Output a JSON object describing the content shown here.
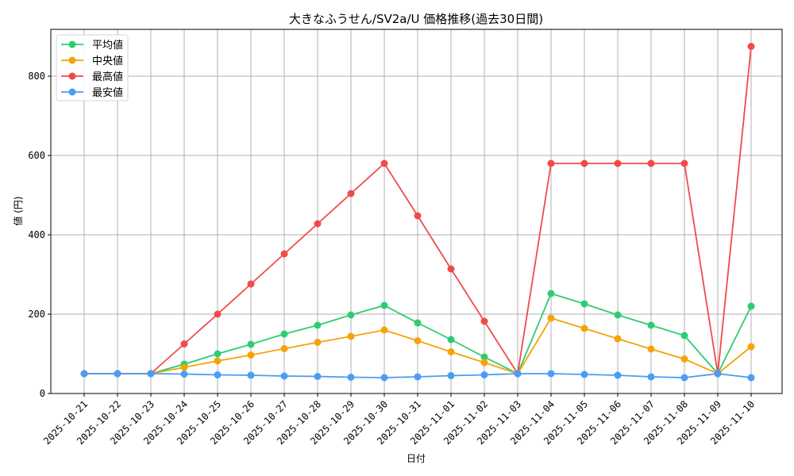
{
  "chart_data": {
    "type": "line",
    "title": "大きなふうせん/SV2a/U 価格推移(過去30日間)",
    "xlabel": "日付",
    "ylabel": "値 (円)",
    "ylim": [
      0,
      920
    ],
    "yticks": [
      0,
      200,
      400,
      600,
      800
    ],
    "grid": true,
    "legend_position": "upper left",
    "categories": [
      "2025-10-21",
      "2025-10-22",
      "2025-10-23",
      "2025-10-24",
      "2025-10-25",
      "2025-10-26",
      "2025-10-27",
      "2025-10-28",
      "2025-10-29",
      "2025-10-30",
      "2025-10-31",
      "2025-11-01",
      "2025-11-02",
      "2025-11-03",
      "2025-11-04",
      "2025-11-05",
      "2025-11-06",
      "2025-11-07",
      "2025-11-08",
      "2025-11-09",
      "2025-11-10"
    ],
    "series": [
      {
        "name": "平均値",
        "color": "#2ecc71",
        "values": [
          50,
          50,
          50,
          74,
          100,
          124,
          150,
          172,
          198,
          222,
          178,
          136,
          92,
          50,
          252,
          226,
          198,
          172,
          146,
          50,
          220
        ]
      },
      {
        "name": "中央値",
        "color": "#f5a30a",
        "values": [
          50,
          50,
          50,
          66,
          82,
          97,
          113,
          129,
          144,
          160,
          133,
          105,
          78,
          50,
          190,
          164,
          138,
          112,
          87,
          50,
          118
        ]
      },
      {
        "name": "最高値",
        "color": "#f04b4b",
        "values": [
          50,
          50,
          50,
          125,
          200,
          276,
          352,
          428,
          504,
          580,
          448,
          314,
          182,
          50,
          580,
          580,
          580,
          580,
          580,
          50,
          875
        ]
      },
      {
        "name": "最安値",
        "color": "#4b9cf5",
        "values": [
          50,
          50,
          50,
          49,
          47,
          46,
          44,
          43,
          41,
          40,
          42,
          45,
          47,
          50,
          50,
          48,
          46,
          42,
          40,
          50,
          40
        ]
      }
    ]
  }
}
